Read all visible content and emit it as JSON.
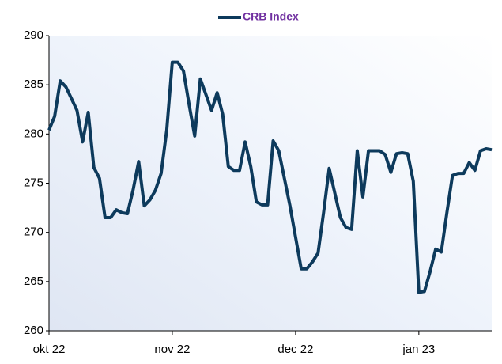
{
  "chart_data": {
    "type": "line",
    "categories": [
      "okt 22",
      null,
      null,
      null,
      null,
      null,
      null,
      null,
      null,
      null,
      null,
      null,
      null,
      null,
      null,
      null,
      null,
      null,
      null,
      null,
      null,
      null,
      "nov 22",
      null,
      null,
      null,
      null,
      null,
      null,
      null,
      null,
      null,
      null,
      null,
      null,
      null,
      null,
      null,
      null,
      null,
      null,
      null,
      null,
      null,
      "dec 22",
      null,
      null,
      null,
      null,
      null,
      null,
      null,
      null,
      null,
      null,
      null,
      null,
      null,
      null,
      null,
      null,
      null,
      null,
      null,
      null,
      null,
      "jan 23",
      null,
      null,
      null,
      null,
      null,
      null,
      null,
      null,
      null,
      null,
      null,
      null,
      null
    ],
    "series": [
      {
        "name": "CRB Index",
        "color": "#0d3a5c",
        "values": [
          280.4,
          281.8,
          285.4,
          284.8,
          283.6,
          282.4,
          279.2,
          282.2,
          276.6,
          275.5,
          271.5,
          271.5,
          272.3,
          272,
          271.9,
          274.3,
          277.2,
          272.7,
          273.3,
          274.3,
          276,
          280.4,
          287.3,
          287.3,
          286.4,
          283,
          279.8,
          285.6,
          284,
          282.4,
          284.2,
          282,
          276.7,
          276.3,
          276.3,
          279.2,
          276.7,
          273.1,
          272.8,
          272.8,
          279.3,
          278.3,
          275.5,
          272.7,
          269.5,
          266.3,
          266.3,
          267,
          267.9,
          272,
          276.5,
          274,
          271.5,
          270.5,
          270.3,
          278.3,
          273.6,
          278.3,
          278.3,
          278.3,
          277.9,
          276.1,
          278,
          278.1,
          278,
          275.2,
          263.9,
          264,
          266,
          268.3,
          268,
          272,
          275.8,
          276,
          276,
          277.1,
          276.3,
          278.3,
          278.5,
          278.4
        ]
      }
    ],
    "ylim": [
      260,
      290
    ],
    "yticks": [
      260,
      265,
      270,
      275,
      280,
      285,
      290
    ],
    "legend": "top",
    "legend_color": "#7030a0"
  }
}
